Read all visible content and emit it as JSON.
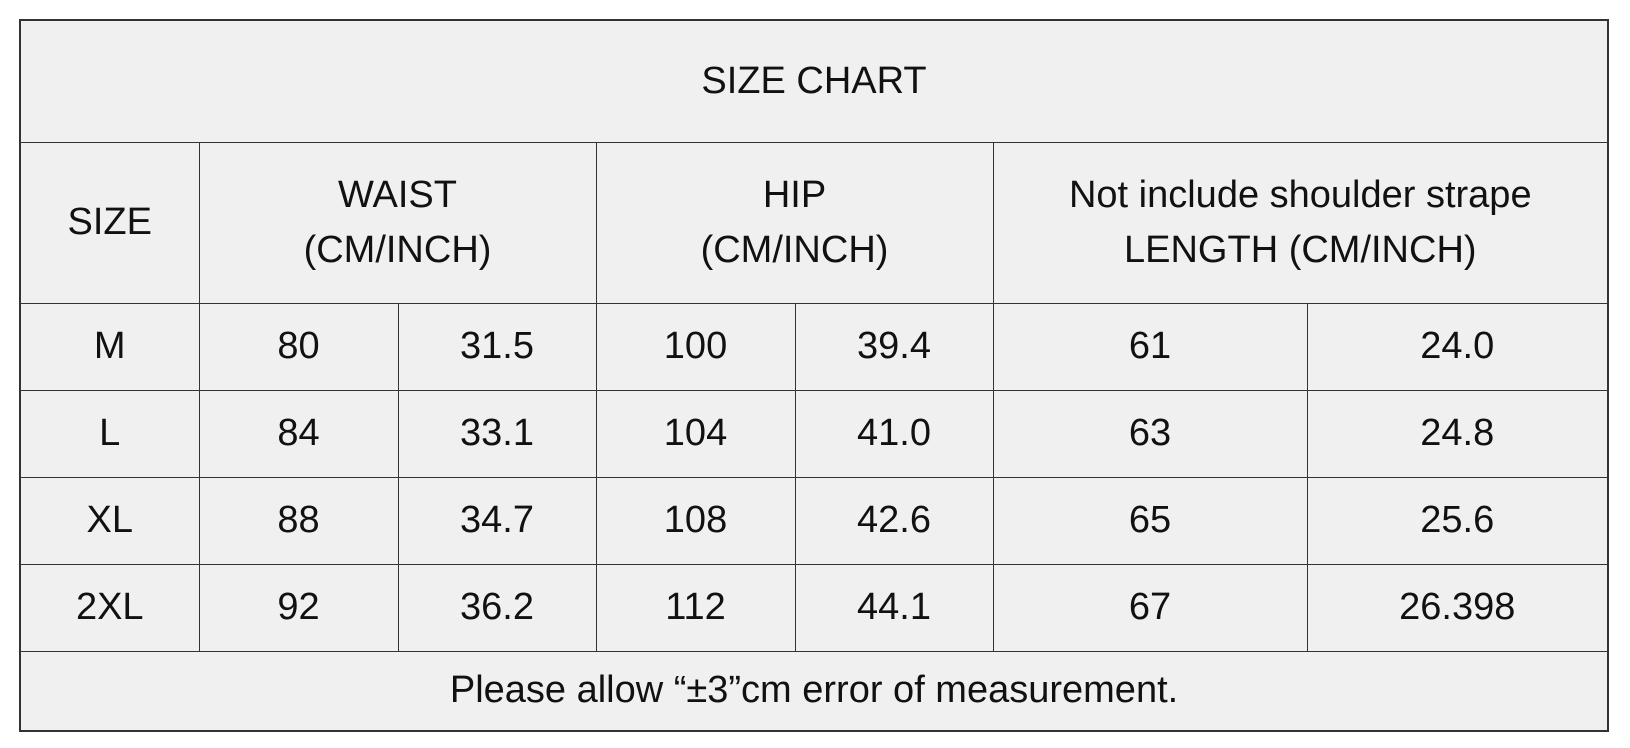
{
  "table": {
    "title": "SIZE CHART",
    "header": [
      [
        "SIZE"
      ],
      [
        "WAIST",
        "(CM/INCH)"
      ],
      [
        "HIP",
        "(CM/INCH)"
      ],
      [
        "Not include shoulder strape",
        "LENGTH (CM/INCH)"
      ]
    ],
    "rows": [
      [
        "M",
        "80",
        "31.5",
        "100",
        "39.4",
        "61",
        "24.0"
      ],
      [
        "L",
        "84",
        "33.1",
        "104",
        "41.0",
        "63",
        "24.8"
      ],
      [
        "XL",
        "88",
        "34.7",
        "108",
        "42.6",
        "65",
        "25.6"
      ],
      [
        "2XL",
        "92",
        "36.2",
        "112",
        "44.1",
        "67",
        "26.398"
      ]
    ],
    "footer": "Please allow “±3”cm error of measurement."
  }
}
